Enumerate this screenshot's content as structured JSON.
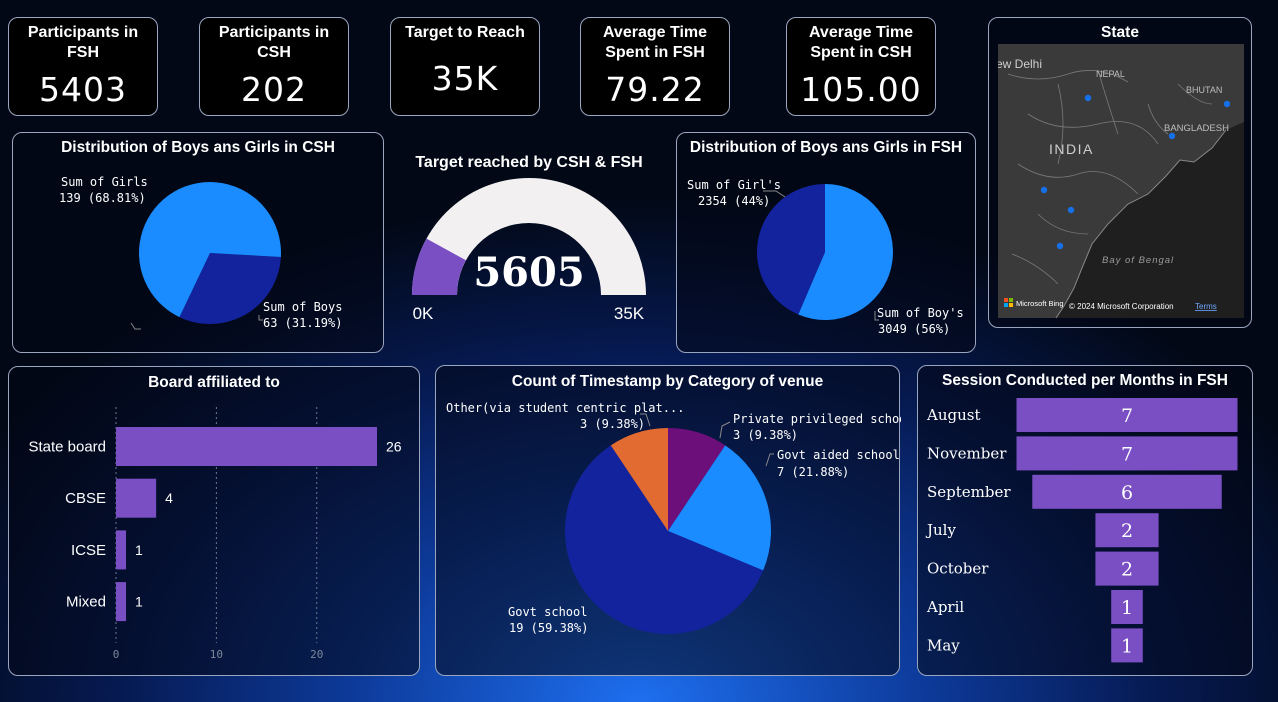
{
  "kpis": [
    {
      "title": "Participants in FSH",
      "value": "5403"
    },
    {
      "title": "Participants in CSH",
      "value": "202"
    },
    {
      "title": "Target to Reach",
      "value": "35K"
    },
    {
      "title": "Average Time Spent in FSH",
      "value": "79.22"
    },
    {
      "title": "Average Time Spent in CSH",
      "value": "105.00"
    }
  ],
  "map": {
    "title": "State",
    "labels": {
      "delhi": "ew Delhi",
      "nepal": "NEPAL",
      "bhutan": "BHUTAN",
      "bangladesh": "BANGLADESH",
      "india": "INDIA",
      "bay": "Bay of Bengal"
    },
    "attribution": {
      "brand": "Microsoft Bing",
      "copyright": "© 2024 Microsoft Corporation",
      "terms": "Terms"
    }
  },
  "gauge": {
    "title": "Target reached by CSH & FSH",
    "value_label": "5605",
    "min_label": "0K",
    "max_label": "35K"
  },
  "colors": {
    "purple": "#7a4fc4",
    "lightblue": "#1a8cff",
    "darkblue": "#13239e",
    "orange": "#e26b32",
    "plum": "#6d0f7a",
    "gauge_track": "#f2f0f0"
  },
  "chart_data": [
    {
      "type": "pie",
      "title": "Distribution of Boys ans Girls in CSH",
      "slices": [
        {
          "name": "Sum of Girls",
          "value": 139,
          "label": "139 (68.81%)"
        },
        {
          "name": "Sum of Boys",
          "value": 63,
          "label": "63 (31.19%)"
        }
      ]
    },
    {
      "type": "gauge",
      "title": "Target reached by CSH & FSH",
      "value": 5605,
      "min": 0,
      "max": 35000
    },
    {
      "type": "pie",
      "title": "Distribution of Boys ans Girls in FSH",
      "slices": [
        {
          "name": "Sum of Girl's",
          "value": 2354,
          "label": "2354 (44%)"
        },
        {
          "name": "Sum of Boy's",
          "value": 3049,
          "label": "3049 (56%)"
        }
      ]
    },
    {
      "type": "bar",
      "orientation": "horizontal",
      "title": "Board affiliated to",
      "categories": [
        "State board",
        "CBSE",
        "ICSE",
        "Mixed"
      ],
      "values": [
        26,
        4,
        1,
        1
      ],
      "xlim": [
        0,
        29
      ],
      "x_ticks": [
        "0",
        "10",
        "20"
      ],
      "grid": true
    },
    {
      "type": "pie",
      "title": "Count of Timestamp by Category of venue",
      "slices": [
        {
          "name": "Private privileged school",
          "value": 3,
          "label": "3 (9.38%)"
        },
        {
          "name": "Govt aided school",
          "value": 7,
          "label": "7 (21.88%)"
        },
        {
          "name": "Govt school",
          "value": 19,
          "label": "19 (59.38%)"
        },
        {
          "name": "Other(via student centric plat...",
          "value": 3,
          "label": "3 (9.38%)"
        }
      ]
    },
    {
      "type": "bar",
      "orientation": "funnel",
      "title": "Session Conducted per Months in FSH",
      "categories": [
        "August",
        "November",
        "September",
        "July",
        "October",
        "April",
        "May"
      ],
      "values": [
        7,
        7,
        6,
        2,
        2,
        1,
        1
      ]
    }
  ]
}
